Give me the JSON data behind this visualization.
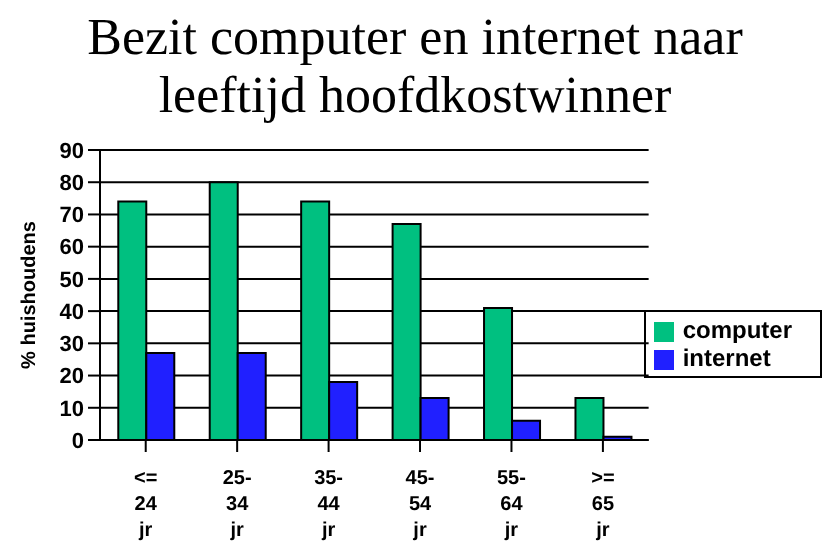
{
  "chart_data": {
    "type": "bar",
    "title": "Bezit computer en internet naar leeftijd hoofdkostwinner",
    "ylabel": "% huishoudens",
    "categories": [
      "<= 24 jr",
      "25-34 jr",
      "35-44 jr",
      "45-54 jr",
      "55-64 jr",
      ">= 65 jr"
    ],
    "series": [
      {
        "name": "computer",
        "color": "#00c080",
        "values": [
          74,
          80,
          74,
          67,
          41,
          13
        ]
      },
      {
        "name": "internet",
        "color": "#2020ff",
        "values": [
          27,
          27,
          18,
          13,
          6,
          1
        ]
      }
    ],
    "ylim": [
      0,
      90
    ],
    "yticks": [
      0,
      10,
      20,
      30,
      40,
      50,
      60,
      70,
      80,
      90
    ],
    "grid": "y",
    "legend": "right"
  }
}
